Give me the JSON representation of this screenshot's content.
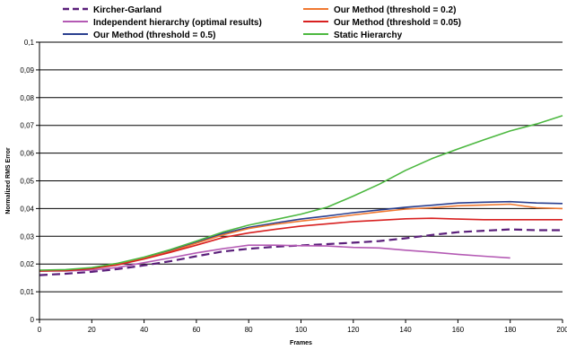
{
  "chart_data": {
    "type": "line",
    "title": "",
    "xlabel": "Frames",
    "ylabel": "Normalized RMS Error",
    "xlim": [
      0,
      200
    ],
    "ylim": [
      0,
      0.1
    ],
    "x_ticks": [
      "0",
      "20",
      "40",
      "60",
      "80",
      "100",
      "120",
      "140",
      "160",
      "180",
      "200"
    ],
    "y_ticks": [
      "0",
      "0,01",
      "0,02",
      "0,03",
      "0,04",
      "0,05",
      "0,06",
      "0,07",
      "0,08",
      "0,09",
      "0,1"
    ],
    "grid": true,
    "legend_position": "top",
    "series": [
      {
        "name": "Kircher-Garland",
        "color": "#5a1f7a",
        "dashed": true,
        "x": [
          0,
          10,
          20,
          30,
          40,
          50,
          60,
          70,
          80,
          90,
          100,
          110,
          120,
          130,
          140,
          150,
          160,
          170,
          180,
          190,
          200
        ],
        "values": [
          0.016,
          0.0165,
          0.0172,
          0.0182,
          0.0195,
          0.021,
          0.0228,
          0.0245,
          0.0255,
          0.0262,
          0.0267,
          0.0272,
          0.0277,
          0.0283,
          0.0293,
          0.0305,
          0.0315,
          0.032,
          0.0325,
          0.0322,
          0.0322
        ]
      },
      {
        "name": "Independent hierarchy (optimal results)",
        "color": "#b45ab4",
        "dashed": false,
        "x": [
          0,
          10,
          20,
          30,
          40,
          50,
          60,
          70,
          80,
          90,
          100,
          110,
          120,
          130,
          140,
          150,
          160,
          170,
          180
        ],
        "values": [
          0.0175,
          0.0175,
          0.0178,
          0.0188,
          0.0205,
          0.0222,
          0.024,
          0.0255,
          0.0268,
          0.0268,
          0.0266,
          0.0265,
          0.026,
          0.0258,
          0.025,
          0.0243,
          0.0235,
          0.0228,
          0.0222
        ]
      },
      {
        "name": "Our Method (threshold = 0.5)",
        "color": "#2a3f8f",
        "dashed": false,
        "x": [
          0,
          10,
          20,
          30,
          40,
          50,
          60,
          70,
          80,
          90,
          100,
          110,
          120,
          130,
          140,
          150,
          160,
          170,
          180,
          190,
          200
        ],
        "values": [
          0.0175,
          0.0177,
          0.0185,
          0.02,
          0.0222,
          0.0248,
          0.0278,
          0.031,
          0.0332,
          0.0348,
          0.0362,
          0.0373,
          0.0385,
          0.0395,
          0.0405,
          0.0412,
          0.042,
          0.0423,
          0.0425,
          0.042,
          0.0418
        ]
      },
      {
        "name": "Our Method (threshold = 0.2)",
        "color": "#f07830",
        "dashed": false,
        "x": [
          0,
          10,
          20,
          30,
          40,
          50,
          60,
          70,
          80,
          90,
          100,
          110,
          120,
          130,
          140,
          150,
          160,
          170,
          180,
          190,
          200
        ],
        "values": [
          0.0175,
          0.0177,
          0.0184,
          0.0198,
          0.022,
          0.0245,
          0.0275,
          0.0305,
          0.0328,
          0.0343,
          0.0355,
          0.0365,
          0.0377,
          0.0388,
          0.0398,
          0.0403,
          0.041,
          0.0413,
          0.0416,
          0.0403,
          0.04
        ]
      },
      {
        "name": "Our Method (threshold = 0.05)",
        "color": "#d82020",
        "dashed": false,
        "x": [
          0,
          10,
          20,
          30,
          40,
          50,
          60,
          70,
          80,
          90,
          100,
          110,
          120,
          130,
          140,
          150,
          160,
          170,
          180,
          190,
          200
        ],
        "values": [
          0.0175,
          0.0176,
          0.0183,
          0.0197,
          0.0218,
          0.0242,
          0.0268,
          0.0295,
          0.0312,
          0.0325,
          0.0337,
          0.0345,
          0.0353,
          0.0358,
          0.0363,
          0.0365,
          0.0362,
          0.036,
          0.036,
          0.036,
          0.036
        ]
      },
      {
        "name": "Static Hierarchy",
        "color": "#4cb840",
        "dashed": false,
        "x": [
          0,
          10,
          20,
          30,
          40,
          50,
          60,
          70,
          80,
          90,
          100,
          110,
          120,
          130,
          140,
          150,
          160,
          170,
          180,
          190,
          200
        ],
        "values": [
          0.0178,
          0.018,
          0.0187,
          0.0203,
          0.0225,
          0.0252,
          0.0283,
          0.0315,
          0.034,
          0.036,
          0.038,
          0.0405,
          0.0445,
          0.0488,
          0.0538,
          0.058,
          0.0615,
          0.0648,
          0.068,
          0.0705,
          0.0735
        ]
      }
    ]
  }
}
